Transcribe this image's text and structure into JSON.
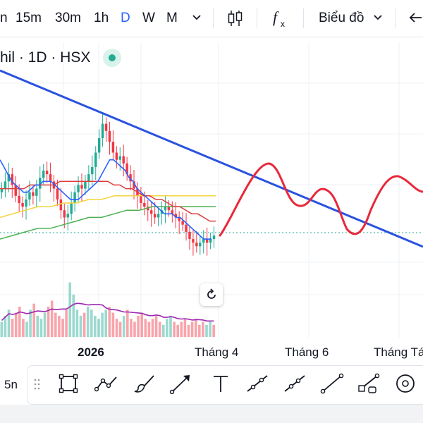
{
  "toolbar": {
    "intervals": [
      "n",
      "15m",
      "30m",
      "1h",
      "D",
      "W",
      "M"
    ],
    "active_interval": "D",
    "chart_type_label": "Biểu đồ",
    "indicator_icon": "fx-icon",
    "candles_icon": "candles-icon",
    "back_icon": "arrow-left-icon"
  },
  "symbol": {
    "title": "hil · 1D · HSX",
    "status_color": "#22ab94"
  },
  "xaxis": {
    "labels": [
      "2026",
      "Tháng 4",
      "Tháng 6",
      "Tháng Tá"
    ]
  },
  "drawbar": {
    "range_label": "5n",
    "tools": [
      "rectangle-icon",
      "path-icon",
      "brush-icon",
      "arrow-icon",
      "text-icon",
      "parallel-channel-icon",
      "trend-line-icon",
      "ray-line-icon",
      "segment-icon",
      "measure-icon",
      "circle-target-icon"
    ]
  },
  "colors": {
    "up": "#22ab94",
    "down": "#f23645",
    "trendline": "#2a52e0",
    "ma_short": "#2962ff",
    "ma_mid": "#e03c3c",
    "ma_long1": "#f5d33c",
    "ma_long2": "#4caf50",
    "volume_ma": "#9c27b0",
    "projection": "#e8283a"
  },
  "chart_data": {
    "type": "candlestick",
    "price_series": {
      "closes": [
        62,
        64,
        66,
        63,
        60,
        58,
        57,
        59,
        61,
        60,
        62,
        65,
        67,
        66,
        64,
        62,
        59,
        56,
        54,
        55,
        58,
        61,
        63,
        62,
        64,
        66,
        68,
        72,
        76,
        80,
        78,
        75,
        72,
        70,
        71,
        69,
        66,
        64,
        62,
        60,
        58,
        57,
        56,
        55,
        54,
        55,
        56,
        57,
        56,
        55,
        54,
        53,
        52,
        50,
        48,
        47,
        46,
        47,
        48,
        47,
        48,
        49
      ]
    },
    "moving_averages": {
      "short": [
        70,
        68,
        66,
        64,
        63,
        62,
        61,
        61,
        62,
        63,
        63,
        64,
        64,
        64,
        63,
        62,
        61,
        60,
        59,
        59,
        59,
        60,
        61,
        62,
        63,
        64,
        66,
        68,
        70,
        70,
        69,
        68,
        67,
        65,
        64,
        62,
        61,
        60,
        59,
        58,
        57,
        56,
        55,
        55,
        55,
        54,
        54,
        53,
        52,
        51,
        50,
        49,
        48,
        48,
        48
      ],
      "mid": [
        62,
        62,
        62,
        62,
        62,
        63,
        63,
        63,
        63,
        63,
        64,
        64,
        64,
        64,
        64,
        64,
        64,
        64,
        64,
        63,
        63,
        62,
        62,
        61,
        60,
        60,
        59,
        59,
        58,
        57,
        57,
        56,
        55,
        55,
        54,
        53,
        53
      ],
      "long1": [
        54,
        55,
        56,
        57,
        57,
        58,
        58,
        59,
        59,
        60,
        60,
        60,
        60,
        60,
        60,
        60,
        60,
        60
      ],
      "long2": [
        48,
        49,
        50,
        51,
        51,
        52,
        53,
        54,
        54,
        55,
        56,
        56,
        57,
        57,
        57,
        57,
        57,
        57
      ]
    },
    "volume": [
      5,
      7,
      9,
      6,
      8,
      10,
      6,
      5,
      9,
      11,
      7,
      6,
      8,
      10,
      12,
      8,
      7,
      6,
      9,
      18,
      14,
      9,
      7,
      8,
      10,
      9,
      7,
      6,
      8,
      9,
      10,
      8,
      6,
      5,
      7,
      9,
      6,
      5,
      7,
      8,
      6,
      5,
      6,
      7,
      5,
      4,
      6,
      7,
      5,
      4,
      5,
      6,
      4,
      5,
      6,
      4,
      5,
      4,
      5,
      4
    ]
  }
}
